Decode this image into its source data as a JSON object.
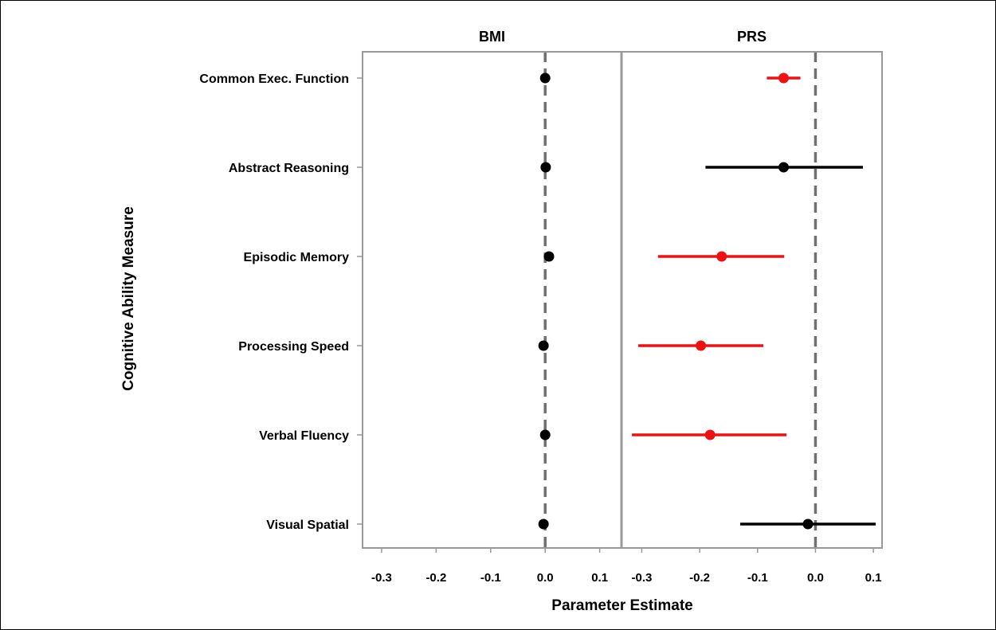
{
  "chart_data": {
    "type": "scatter",
    "subtype": "forest-plot",
    "xlabel": "Parameter Estimate",
    "ylabel": "Cognitive Ability Measure",
    "categories": [
      "Common Exec. Function",
      "Abstract Reasoning",
      "Episodic Memory",
      "Processing Speed",
      "Verbal Fluency",
      "Visual Spatial"
    ],
    "reference_line_x": 0.0,
    "colors": {
      "significant": "#ee1111",
      "nonsignificant": "#000000",
      "reference": "#707070",
      "frame": "#999999"
    },
    "panels": [
      {
        "title": "BMI",
        "xlim": [
          -0.335,
          0.14
        ],
        "xticks": [
          -0.3,
          -0.2,
          -0.1,
          0.0,
          0.1
        ],
        "xtick_labels": [
          "-0.3",
          "-0.2",
          "-0.1",
          "0.0",
          "0.1"
        ],
        "estimates": [
          {
            "measure": "Common Exec. Function",
            "estimate": 0.0,
            "lower": -0.003,
            "upper": 0.003,
            "significant": false
          },
          {
            "measure": "Abstract Reasoning",
            "estimate": 0.001,
            "lower": -0.007,
            "upper": 0.01,
            "significant": false
          },
          {
            "measure": "Episodic Memory",
            "estimate": 0.007,
            "lower": 0.001,
            "upper": 0.013,
            "significant": false
          },
          {
            "measure": "Processing Speed",
            "estimate": -0.003,
            "lower": -0.009,
            "upper": 0.003,
            "significant": false
          },
          {
            "measure": "Verbal Fluency",
            "estimate": 0.0,
            "lower": -0.008,
            "upper": 0.009,
            "significant": false
          },
          {
            "measure": "Visual Spatial",
            "estimate": -0.003,
            "lower": -0.008,
            "upper": 0.003,
            "significant": false
          }
        ]
      },
      {
        "title": "PRS",
        "xlim": [
          -0.335,
          0.115
        ],
        "xticks": [
          -0.3,
          -0.2,
          -0.1,
          0.0,
          0.1
        ],
        "xtick_labels": [
          "-0.3",
          "-0.2",
          "-0.1",
          "0.0",
          "0.1"
        ],
        "estimates": [
          {
            "measure": "Common Exec. Function",
            "estimate": -0.055,
            "lower": -0.084,
            "upper": -0.026,
            "significant": true
          },
          {
            "measure": "Abstract Reasoning",
            "estimate": -0.055,
            "lower": -0.19,
            "upper": 0.082,
            "significant": false
          },
          {
            "measure": "Episodic Memory",
            "estimate": -0.162,
            "lower": -0.272,
            "upper": -0.054,
            "significant": true
          },
          {
            "measure": "Processing Speed",
            "estimate": -0.198,
            "lower": -0.306,
            "upper": -0.09,
            "significant": true
          },
          {
            "measure": "Verbal Fluency",
            "estimate": -0.182,
            "lower": -0.317,
            "upper": -0.05,
            "significant": true
          },
          {
            "measure": "Visual Spatial",
            "estimate": -0.013,
            "lower": -0.13,
            "upper": 0.104,
            "significant": false
          }
        ]
      }
    ]
  }
}
